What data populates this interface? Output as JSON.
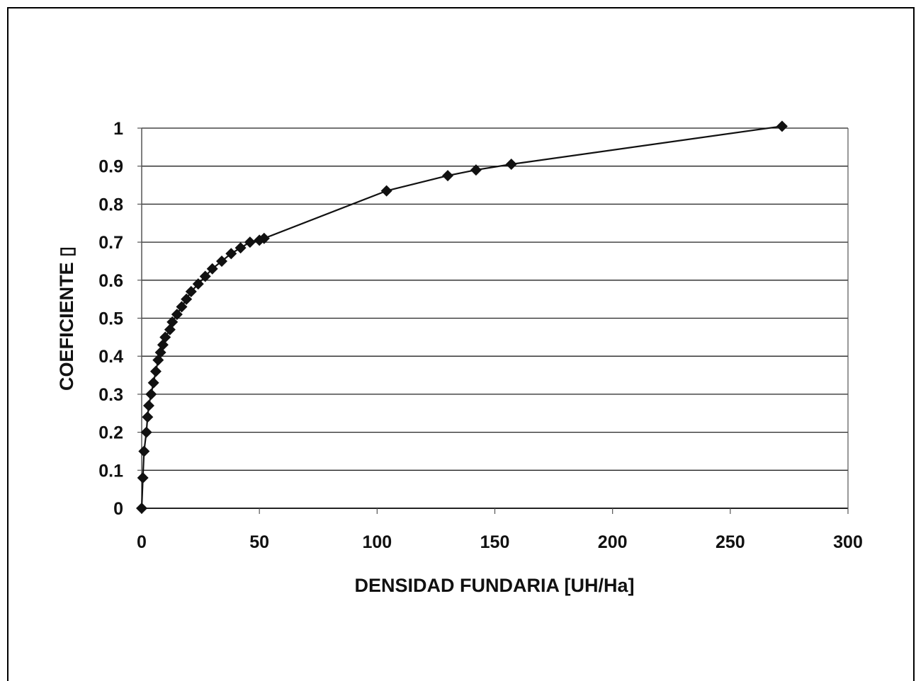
{
  "chart_data": {
    "type": "line",
    "title": "",
    "xlabel": "DENSIDAD FUNDARIA [UH/Ha]",
    "ylabel": "COEFICIENTE ▯",
    "xlim": [
      0,
      300
    ],
    "ylim": [
      0,
      1
    ],
    "x_ticks": [
      "0",
      "50",
      "100",
      "150",
      "200",
      "250",
      "300"
    ],
    "y_ticks": [
      "0",
      "0.1",
      "0.2",
      "0.3",
      "0.4",
      "0.5",
      "0.6",
      "0.7",
      "0.8",
      "0.9",
      "1"
    ],
    "grid": "horizontal",
    "legend": "none",
    "marker": "diamond",
    "colors": {
      "line": "#111111",
      "marker": "#111111",
      "grid": "#222222",
      "axis": "#555555"
    },
    "series": [
      {
        "values": [
          {
            "x": 0,
            "y": 0
          },
          {
            "x": 0.5,
            "y": 0.08
          },
          {
            "x": 1,
            "y": 0.15
          },
          {
            "x": 2,
            "y": 0.2
          },
          {
            "x": 2.5,
            "y": 0.24
          },
          {
            "x": 3,
            "y": 0.27
          },
          {
            "x": 4,
            "y": 0.3
          },
          {
            "x": 5,
            "y": 0.33
          },
          {
            "x": 6,
            "y": 0.36
          },
          {
            "x": 7,
            "y": 0.39
          },
          {
            "x": 8,
            "y": 0.41
          },
          {
            "x": 9,
            "y": 0.43
          },
          {
            "x": 10,
            "y": 0.45
          },
          {
            "x": 12,
            "y": 0.47
          },
          {
            "x": 13,
            "y": 0.49
          },
          {
            "x": 15,
            "y": 0.51
          },
          {
            "x": 17,
            "y": 0.53
          },
          {
            "x": 19,
            "y": 0.55
          },
          {
            "x": 21,
            "y": 0.57
          },
          {
            "x": 24,
            "y": 0.59
          },
          {
            "x": 27,
            "y": 0.61
          },
          {
            "x": 30,
            "y": 0.63
          },
          {
            "x": 34,
            "y": 0.65
          },
          {
            "x": 38,
            "y": 0.67
          },
          {
            "x": 42,
            "y": 0.685
          },
          {
            "x": 46,
            "y": 0.7
          },
          {
            "x": 50,
            "y": 0.705
          },
          {
            "x": 52,
            "y": 0.71
          },
          {
            "x": 104,
            "y": 0.835
          },
          {
            "x": 130,
            "y": 0.875
          },
          {
            "x": 142,
            "y": 0.89
          },
          {
            "x": 157,
            "y": 0.905
          },
          {
            "x": 272,
            "y": 1.005
          }
        ]
      }
    ]
  }
}
